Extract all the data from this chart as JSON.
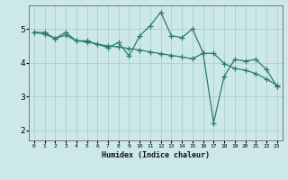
{
  "xlabel": "Humidex (Indice chaleur)",
  "background_color": "#cde8e8",
  "grid_color": "#aacfcf",
  "line_color": "#2a7a6a",
  "x_ticks": [
    0,
    1,
    2,
    3,
    4,
    5,
    6,
    7,
    8,
    9,
    10,
    11,
    12,
    13,
    14,
    15,
    16,
    17,
    18,
    19,
    20,
    21,
    22,
    23
  ],
  "ylim": [
    1.7,
    5.7
  ],
  "xlim": [
    -0.5,
    23.5
  ],
  "series1_x": [
    0,
    1,
    2,
    3,
    4,
    5,
    6,
    7,
    8,
    9,
    10,
    11,
    12,
    13,
    14,
    15,
    16,
    17,
    18,
    19,
    20,
    21,
    22,
    23
  ],
  "series1_y": [
    4.9,
    4.9,
    4.72,
    4.9,
    4.65,
    4.65,
    4.55,
    4.45,
    4.6,
    4.2,
    4.8,
    5.1,
    5.5,
    4.8,
    4.75,
    5.0,
    4.3,
    2.22,
    3.6,
    4.1,
    4.05,
    4.1,
    3.8,
    3.3
  ],
  "series2_x": [
    0,
    1,
    2,
    3,
    4,
    5,
    6,
    7,
    8,
    9,
    10,
    11,
    12,
    13,
    14,
    15,
    16,
    17,
    18,
    19,
    20,
    21,
    22,
    23
  ],
  "series2_y": [
    4.9,
    4.85,
    4.72,
    4.82,
    4.65,
    4.62,
    4.55,
    4.5,
    4.47,
    4.42,
    4.38,
    4.32,
    4.27,
    4.22,
    4.17,
    4.12,
    4.28,
    4.28,
    3.98,
    3.83,
    3.78,
    3.68,
    3.52,
    3.33
  ],
  "yticks": [
    2,
    3,
    4,
    5
  ],
  "marker": "+",
  "markersize": 4,
  "linewidth": 0.9
}
